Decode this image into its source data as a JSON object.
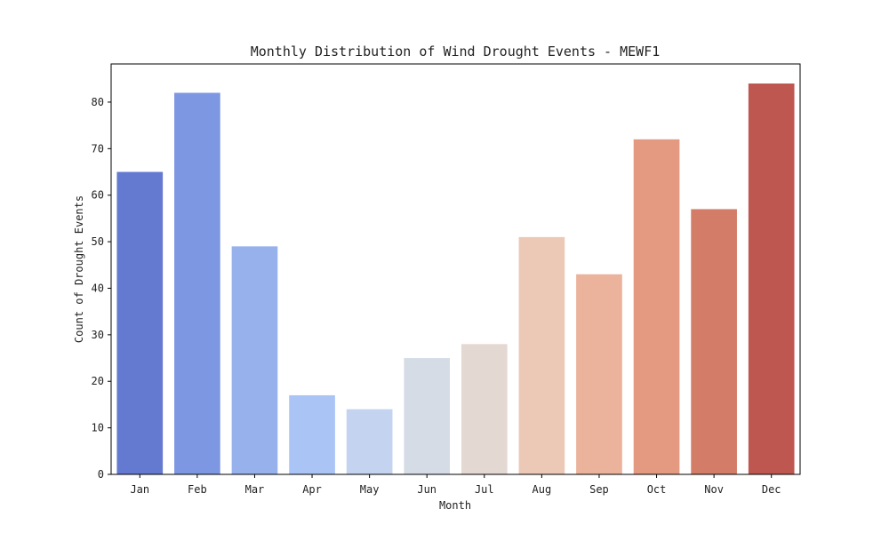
{
  "chart_data": {
    "type": "bar",
    "title": "Monthly Distribution of Wind Drought Events - MEWF1",
    "xlabel": "Month",
    "ylabel": "Count of Drought Events",
    "categories": [
      "Jan",
      "Feb",
      "Mar",
      "Apr",
      "May",
      "Jun",
      "Jul",
      "Aug",
      "Sep",
      "Oct",
      "Nov",
      "Dec"
    ],
    "values": [
      65,
      82,
      49,
      17,
      14,
      25,
      28,
      51,
      43,
      72,
      57,
      84
    ],
    "colors": [
      "#6479d0",
      "#7e97e3",
      "#97b1ed",
      "#abc4f6",
      "#c3d3f0",
      "#d5dce6",
      "#e4d8d2",
      "#ecc9b7",
      "#ebb39c",
      "#e39a81",
      "#d37d69",
      "#bd5750"
    ],
    "ylim": [
      0,
      88.2
    ],
    "yticks": [
      0,
      10,
      20,
      30,
      40,
      50,
      60,
      70,
      80
    ],
    "grid": false,
    "legend": "none"
  }
}
